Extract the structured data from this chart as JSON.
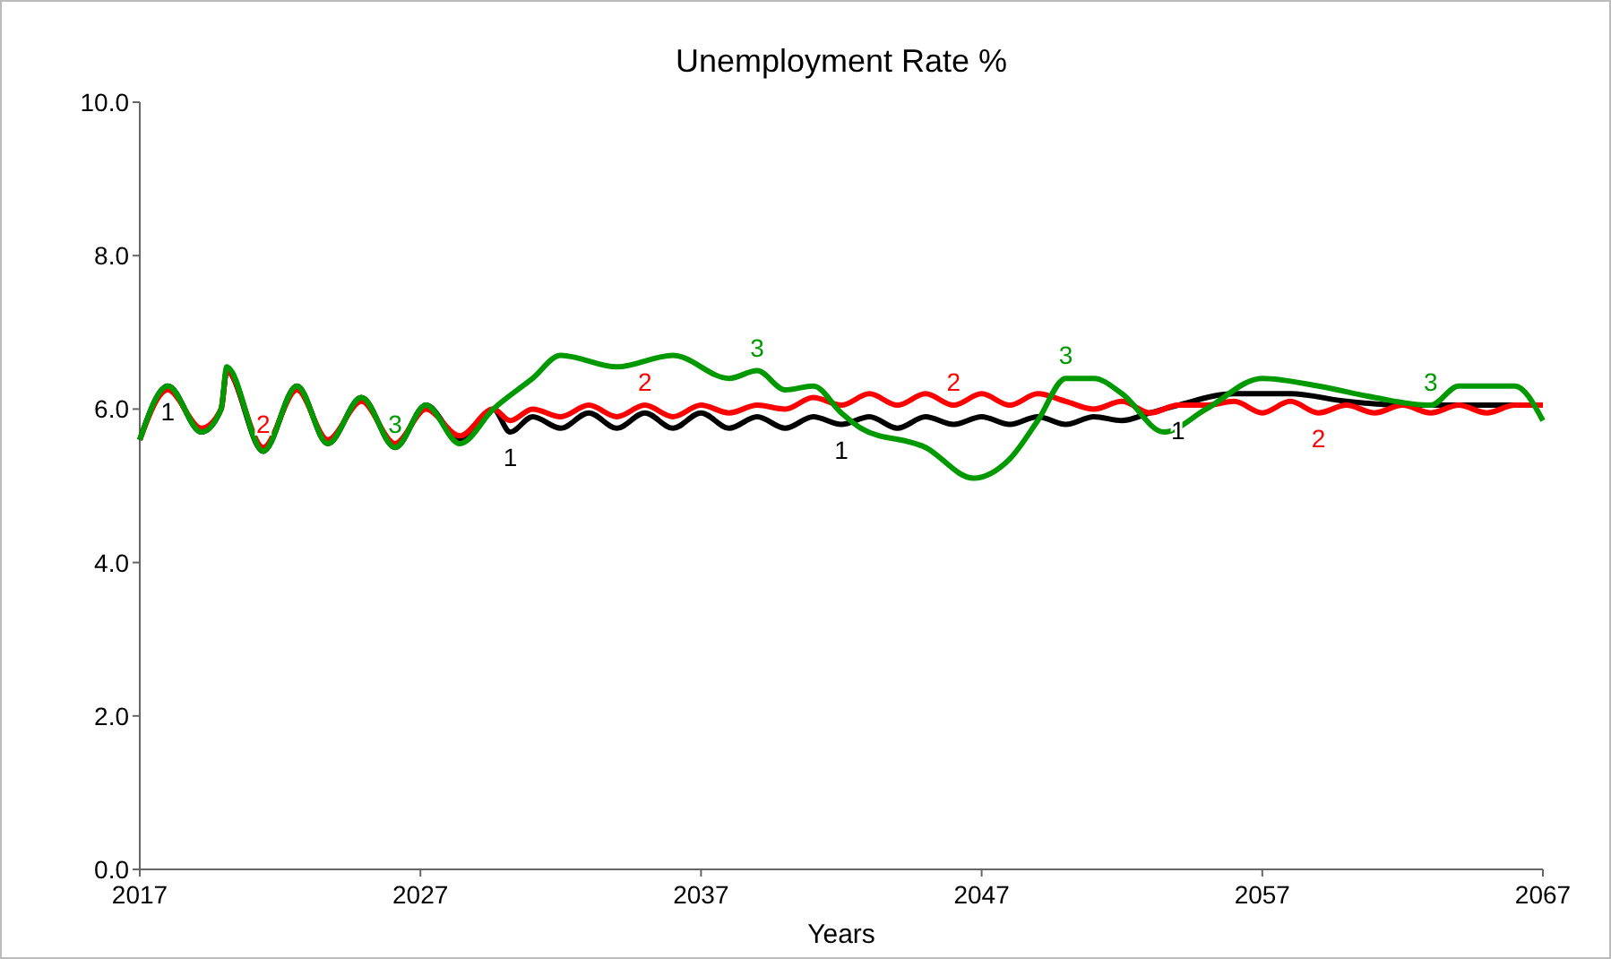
{
  "chart_data": {
    "type": "line",
    "title": "Unemployment Rate %",
    "xlabel": "Years",
    "xlim": [
      2017,
      2067
    ],
    "xticks": [
      2017,
      2027,
      2037,
      2047,
      2057,
      2067
    ],
    "ylim": [
      0,
      10
    ],
    "yticks": [
      {
        "value": 0,
        "label": "0.0"
      },
      {
        "value": 2,
        "label": "2.0"
      },
      {
        "value": 4,
        "label": "4.0"
      },
      {
        "value": 6,
        "label": "6.0"
      },
      {
        "value": 8,
        "label": "8.0"
      },
      {
        "value": 10,
        "label": "10.0"
      }
    ],
    "grid": false,
    "marker": "none",
    "line_style": "solid",
    "series": [
      {
        "name": "1",
        "color": "#000000",
        "x": [
          2017,
          2018,
          2019.2,
          2019.9,
          2020.1,
          2021.4,
          2022.6,
          2023.7,
          2024.9,
          2026.1,
          2027.2,
          2028.4,
          2029.6,
          2030.2,
          2031,
          2032,
          2033,
          2034,
          2035,
          2036,
          2037,
          2038,
          2039,
          2040,
          2041,
          2042,
          2043,
          2044,
          2045,
          2046,
          2047,
          2048,
          2049,
          2050,
          2051,
          2052,
          2053,
          2054,
          2056,
          2058,
          2060,
          2062,
          2064,
          2067
        ],
        "values": [
          5.6,
          6.3,
          5.7,
          6.0,
          6.5,
          5.45,
          6.3,
          5.55,
          6.15,
          5.5,
          6.05,
          5.6,
          6.0,
          5.7,
          5.9,
          5.75,
          5.95,
          5.75,
          5.95,
          5.75,
          5.95,
          5.75,
          5.9,
          5.75,
          5.9,
          5.8,
          5.9,
          5.75,
          5.9,
          5.8,
          5.9,
          5.8,
          5.9,
          5.8,
          5.9,
          5.85,
          5.95,
          6.05,
          6.2,
          6.2,
          6.1,
          6.05,
          6.05,
          6.05
        ]
      },
      {
        "name": "2",
        "color": "#ff0000",
        "x": [
          2017,
          2018,
          2019.2,
          2019.9,
          2020.1,
          2021.4,
          2022.6,
          2023.7,
          2024.9,
          2026.1,
          2027.2,
          2028.4,
          2029.6,
          2030.2,
          2031,
          2032,
          2033,
          2034,
          2035,
          2036,
          2037,
          2038,
          2039,
          2040,
          2041,
          2042,
          2043,
          2044,
          2045,
          2046,
          2047,
          2048,
          2049,
          2050,
          2051,
          2052,
          2053,
          2054,
          2055,
          2056,
          2057,
          2058,
          2059,
          2060,
          2061,
          2062,
          2063,
          2064,
          2065,
          2066,
          2067
        ],
        "values": [
          5.6,
          6.25,
          5.75,
          6.0,
          6.5,
          5.5,
          6.25,
          5.6,
          6.1,
          5.55,
          6.0,
          5.65,
          6.0,
          5.85,
          6.0,
          5.9,
          6.05,
          5.9,
          6.05,
          5.9,
          6.05,
          5.95,
          6.05,
          6.0,
          6.15,
          6.05,
          6.2,
          6.05,
          6.2,
          6.05,
          6.2,
          6.05,
          6.2,
          6.1,
          6.0,
          6.1,
          5.95,
          6.05,
          6.05,
          6.1,
          5.95,
          6.1,
          5.95,
          6.05,
          5.95,
          6.05,
          5.95,
          6.05,
          5.95,
          6.05,
          6.05
        ]
      },
      {
        "name": "3",
        "color": "#009900",
        "x": [
          2017,
          2018,
          2019.2,
          2019.9,
          2020.1,
          2021.4,
          2022.6,
          2023.7,
          2024.9,
          2026.1,
          2027.2,
          2028.4,
          2029.6,
          2031,
          2032,
          2034,
          2036,
          2038,
          2039,
          2040,
          2041,
          2042,
          2042.7,
          2045,
          2046.7,
          2048,
          2049,
          2050,
          2051,
          2052,
          2053.5,
          2055,
          2057,
          2059,
          2061,
          2063,
          2064,
          2066,
          2067
        ],
        "values": [
          5.6,
          6.3,
          5.7,
          6.0,
          6.55,
          5.45,
          6.3,
          5.55,
          6.15,
          5.5,
          6.05,
          5.55,
          6.0,
          6.4,
          6.7,
          6.55,
          6.7,
          6.4,
          6.5,
          6.25,
          6.3,
          5.95,
          5.75,
          5.5,
          5.1,
          5.35,
          5.85,
          6.4,
          6.4,
          6.2,
          5.7,
          6.0,
          6.4,
          6.3,
          6.15,
          6.05,
          6.3,
          6.3,
          5.85
        ]
      }
    ]
  }
}
